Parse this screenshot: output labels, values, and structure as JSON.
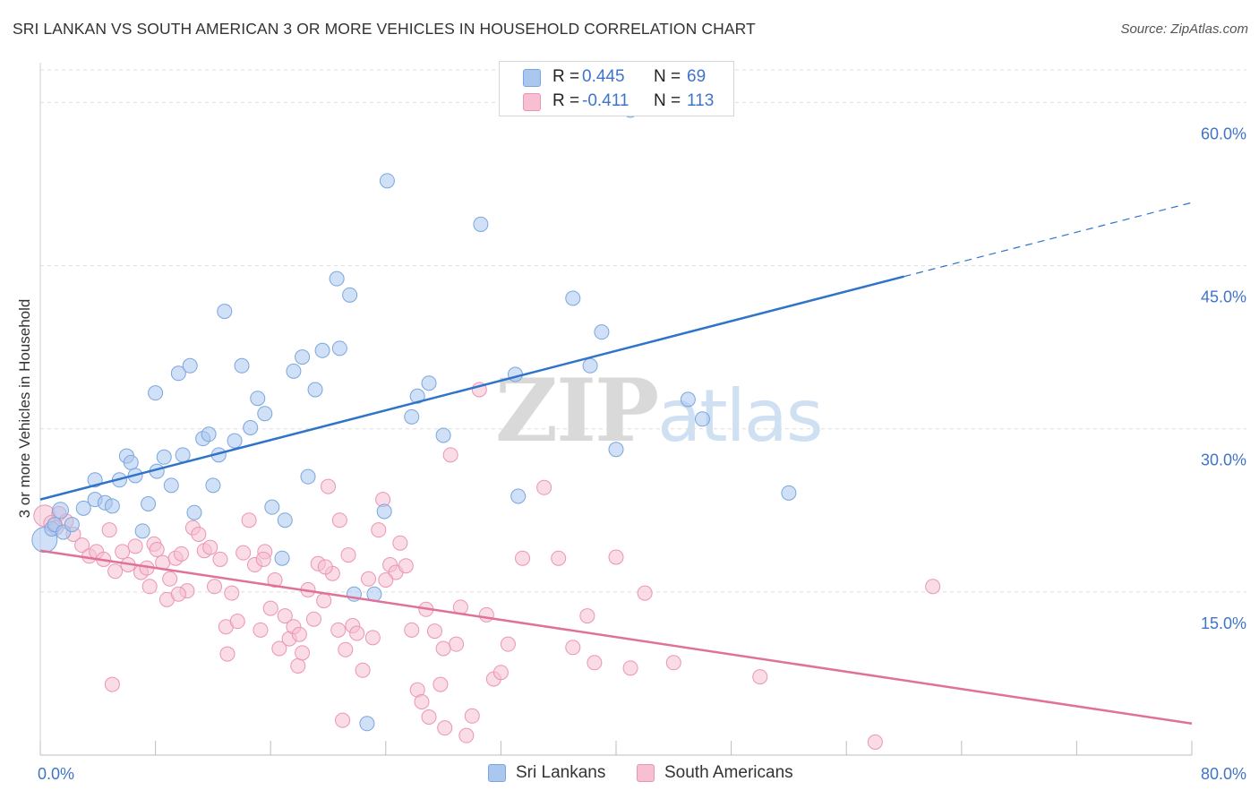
{
  "header": {
    "title": "SRI LANKAN VS SOUTH AMERICAN 3 OR MORE VEHICLES IN HOUSEHOLD CORRELATION CHART",
    "source": "Source: ZipAtlas.com"
  },
  "watermark": {
    "zip": "ZIP",
    "atlas": "atlas"
  },
  "colors": {
    "blue_fill": "#a9c7ef",
    "blue_stroke": "#7aa6de",
    "blue_line": "#2f74c9",
    "pink_fill": "#f6bfd2",
    "pink_stroke": "#ec94b4",
    "pink_line": "#e0719a",
    "grid": "#dedede",
    "tick_label": "#3f74c9"
  },
  "legend": {
    "rows": [
      {
        "r_label": "R =",
        "r_value": "0.445",
        "n_label": "N =",
        "n_value": "69"
      },
      {
        "r_label": "R =",
        "r_value": "-0.411",
        "n_label": "N =",
        "n_value": "113"
      }
    ],
    "bottom": [
      {
        "label": "Sri Lankans"
      },
      {
        "label": "South Americans"
      }
    ]
  },
  "chart_data": {
    "type": "scatter",
    "title": "SRI LANKAN VS SOUTH AMERICAN 3 OR MORE VEHICLES IN HOUSEHOLD CORRELATION CHART",
    "xlabel": "",
    "ylabel": "3 or more Vehicles in Household",
    "xlim": [
      0,
      80
    ],
    "ylim": [
      0,
      63
    ],
    "x_tick_labels": [
      "0.0%",
      "80.0%"
    ],
    "y_ticks": [
      15,
      30,
      45,
      60
    ],
    "y_tick_labels": [
      "15.0%",
      "30.0%",
      "45.0%",
      "60.0%"
    ],
    "grid": true,
    "legend_placement": "top-center",
    "series": [
      {
        "name": "Sri Lankans",
        "color": "#a9c7ef",
        "trend": {
          "x0": 0,
          "y0": 23.5,
          "x1": 60,
          "y1": 44.0,
          "dashed_to_x": 80,
          "dashed_to_y": 50.8
        },
        "points": [
          [
            0.3,
            19.8,
            14
          ],
          [
            0.8,
            20.8,
            8
          ],
          [
            1.0,
            21.2,
            8
          ],
          [
            1.4,
            22.5,
            9
          ],
          [
            1.6,
            20.5,
            8
          ],
          [
            2.2,
            21.2,
            8
          ],
          [
            3.0,
            22.7,
            8
          ],
          [
            3.8,
            23.5,
            8
          ],
          [
            3.8,
            25.3,
            8
          ],
          [
            4.5,
            23.2,
            8
          ],
          [
            5.0,
            22.9,
            8
          ],
          [
            5.5,
            25.3,
            8
          ],
          [
            6.0,
            27.5,
            8
          ],
          [
            6.3,
            26.9,
            8
          ],
          [
            6.6,
            25.7,
            8
          ],
          [
            7.1,
            20.6,
            8
          ],
          [
            7.5,
            23.1,
            8
          ],
          [
            8.0,
            33.3,
            8
          ],
          [
            8.1,
            26.1,
            8
          ],
          [
            8.6,
            27.4,
            8
          ],
          [
            9.1,
            24.8,
            8
          ],
          [
            9.6,
            35.1,
            8
          ],
          [
            9.9,
            27.6,
            8
          ],
          [
            10.4,
            35.8,
            8
          ],
          [
            10.7,
            22.3,
            8
          ],
          [
            11.3,
            29.1,
            8
          ],
          [
            11.7,
            29.5,
            8
          ],
          [
            12.0,
            24.8,
            8
          ],
          [
            12.4,
            27.6,
            8
          ],
          [
            12.8,
            40.8,
            8
          ],
          [
            13.5,
            28.9,
            8
          ],
          [
            14.0,
            35.8,
            8
          ],
          [
            14.6,
            30.1,
            8
          ],
          [
            15.1,
            32.8,
            8
          ],
          [
            15.6,
            31.4,
            8
          ],
          [
            16.1,
            22.8,
            8
          ],
          [
            16.8,
            18.1,
            8
          ],
          [
            17.0,
            21.6,
            8
          ],
          [
            17.6,
            35.3,
            8
          ],
          [
            18.2,
            36.6,
            8
          ],
          [
            18.6,
            25.6,
            8
          ],
          [
            19.1,
            33.6,
            8
          ],
          [
            19.6,
            37.2,
            8
          ],
          [
            20.6,
            43.8,
            8
          ],
          [
            20.8,
            37.4,
            8
          ],
          [
            21.5,
            42.3,
            8
          ],
          [
            21.8,
            14.8,
            8
          ],
          [
            22.7,
            2.9,
            8
          ],
          [
            23.2,
            14.8,
            8
          ],
          [
            23.9,
            22.4,
            8
          ],
          [
            24.1,
            52.8,
            8
          ],
          [
            25.8,
            31.1,
            8
          ],
          [
            26.2,
            33.0,
            8
          ],
          [
            27.0,
            34.2,
            8
          ],
          [
            28.0,
            29.4,
            8
          ],
          [
            30.6,
            48.8,
            8
          ],
          [
            33.0,
            35.0,
            8
          ],
          [
            33.2,
            23.8,
            8
          ],
          [
            37.0,
            42.0,
            8
          ],
          [
            38.2,
            35.8,
            8
          ],
          [
            39.0,
            38.9,
            8
          ],
          [
            40.0,
            28.1,
            8
          ],
          [
            41.0,
            59.3,
            8
          ],
          [
            45.0,
            32.7,
            8
          ],
          [
            46.0,
            30.9,
            8
          ],
          [
            52.0,
            24.1,
            8
          ]
        ]
      },
      {
        "name": "South Americans",
        "color": "#f6bfd2",
        "trend": {
          "x0": 0,
          "y0": 18.8,
          "x1": 80,
          "y1": 2.9
        },
        "points": [
          [
            0.3,
            22.0,
            12
          ],
          [
            0.8,
            21.3,
            9
          ],
          [
            1.1,
            20.9,
            8
          ],
          [
            1.3,
            22.2,
            8
          ],
          [
            1.8,
            21.5,
            8
          ],
          [
            2.3,
            20.3,
            8
          ],
          [
            2.9,
            19.3,
            8
          ],
          [
            3.4,
            18.3,
            8
          ],
          [
            3.9,
            18.7,
            8
          ],
          [
            4.4,
            18.0,
            8
          ],
          [
            4.8,
            20.7,
            8
          ],
          [
            5.2,
            16.9,
            8
          ],
          [
            5.7,
            18.7,
            8
          ],
          [
            6.1,
            17.5,
            8
          ],
          [
            6.6,
            19.2,
            8
          ],
          [
            7.0,
            16.8,
            8
          ],
          [
            7.4,
            17.2,
            8
          ],
          [
            7.9,
            19.4,
            8
          ],
          [
            8.1,
            18.9,
            8
          ],
          [
            8.5,
            17.7,
            8
          ],
          [
            8.8,
            14.3,
            8
          ],
          [
            9.0,
            16.2,
            8
          ],
          [
            9.4,
            18.1,
            8
          ],
          [
            9.8,
            18.5,
            8
          ],
          [
            10.2,
            15.1,
            8
          ],
          [
            10.6,
            20.9,
            8
          ],
          [
            11.0,
            20.3,
            8
          ],
          [
            11.4,
            18.8,
            8
          ],
          [
            11.8,
            19.1,
            8
          ],
          [
            12.1,
            15.5,
            8
          ],
          [
            12.5,
            18.0,
            8
          ],
          [
            12.9,
            11.8,
            8
          ],
          [
            13.3,
            14.9,
            8
          ],
          [
            13.7,
            12.3,
            8
          ],
          [
            14.1,
            18.6,
            8
          ],
          [
            14.5,
            21.6,
            8
          ],
          [
            14.9,
            17.5,
            8
          ],
          [
            15.3,
            11.5,
            8
          ],
          [
            15.6,
            18.7,
            8
          ],
          [
            16.0,
            13.5,
            8
          ],
          [
            16.3,
            16.1,
            8
          ],
          [
            16.6,
            9.8,
            8
          ],
          [
            17.0,
            12.8,
            8
          ],
          [
            17.3,
            10.7,
            8
          ],
          [
            17.6,
            11.8,
            8
          ],
          [
            17.9,
            8.2,
            8
          ],
          [
            18.2,
            9.4,
            8
          ],
          [
            18.6,
            15.2,
            8
          ],
          [
            19.0,
            12.5,
            8
          ],
          [
            19.3,
            17.6,
            8
          ],
          [
            19.7,
            14.2,
            8
          ],
          [
            20.0,
            24.7,
            8
          ],
          [
            20.3,
            16.7,
            8
          ],
          [
            20.7,
            11.5,
            8
          ],
          [
            21.0,
            3.2,
            8
          ],
          [
            21.4,
            18.4,
            8
          ],
          [
            21.7,
            11.9,
            8
          ],
          [
            22.0,
            11.2,
            8
          ],
          [
            22.4,
            7.8,
            8
          ],
          [
            22.8,
            16.2,
            8
          ],
          [
            23.1,
            10.8,
            8
          ],
          [
            23.5,
            20.7,
            8
          ],
          [
            23.8,
            23.5,
            8
          ],
          [
            24.3,
            17.5,
            8
          ],
          [
            24.7,
            16.8,
            8
          ],
          [
            25.0,
            19.5,
            8
          ],
          [
            25.4,
            17.4,
            8
          ],
          [
            25.8,
            11.5,
            8
          ],
          [
            26.2,
            6.0,
            8
          ],
          [
            26.5,
            4.9,
            8
          ],
          [
            27.0,
            3.5,
            8
          ],
          [
            27.4,
            11.4,
            8
          ],
          [
            27.8,
            6.5,
            8
          ],
          [
            28.1,
            2.5,
            8
          ],
          [
            28.5,
            27.6,
            8
          ],
          [
            28.9,
            10.2,
            8
          ],
          [
            29.2,
            13.6,
            8
          ],
          [
            29.6,
            1.8,
            8
          ],
          [
            30.0,
            3.6,
            8
          ],
          [
            30.5,
            33.6,
            8
          ],
          [
            31.0,
            12.9,
            8
          ],
          [
            31.5,
            7.0,
            8
          ],
          [
            32.0,
            7.6,
            8
          ],
          [
            32.5,
            10.2,
            8
          ],
          [
            33.5,
            18.1,
            8
          ],
          [
            35.0,
            24.6,
            8
          ],
          [
            36.0,
            18.1,
            8
          ],
          [
            37.0,
            9.9,
            8
          ],
          [
            38.0,
            12.8,
            8
          ],
          [
            38.5,
            8.5,
            8
          ],
          [
            40.0,
            18.2,
            8
          ],
          [
            41.0,
            8.0,
            8
          ],
          [
            42.0,
            14.9,
            8
          ],
          [
            44.0,
            8.5,
            8
          ],
          [
            50.0,
            7.2,
            8
          ],
          [
            58.0,
            1.2,
            8
          ],
          [
            62.0,
            15.5,
            8
          ],
          [
            5.0,
            6.5,
            8
          ],
          [
            9.6,
            14.8,
            8
          ],
          [
            13.0,
            9.3,
            8
          ],
          [
            15.5,
            18.0,
            8
          ],
          [
            18.0,
            11.1,
            8
          ],
          [
            19.8,
            17.3,
            8
          ],
          [
            21.2,
            9.7,
            8
          ],
          [
            24.0,
            16.1,
            8
          ],
          [
            26.8,
            13.4,
            8
          ],
          [
            28.0,
            9.8,
            8
          ],
          [
            20.8,
            21.6,
            8
          ],
          [
            7.6,
            15.5,
            8
          ]
        ]
      }
    ]
  }
}
